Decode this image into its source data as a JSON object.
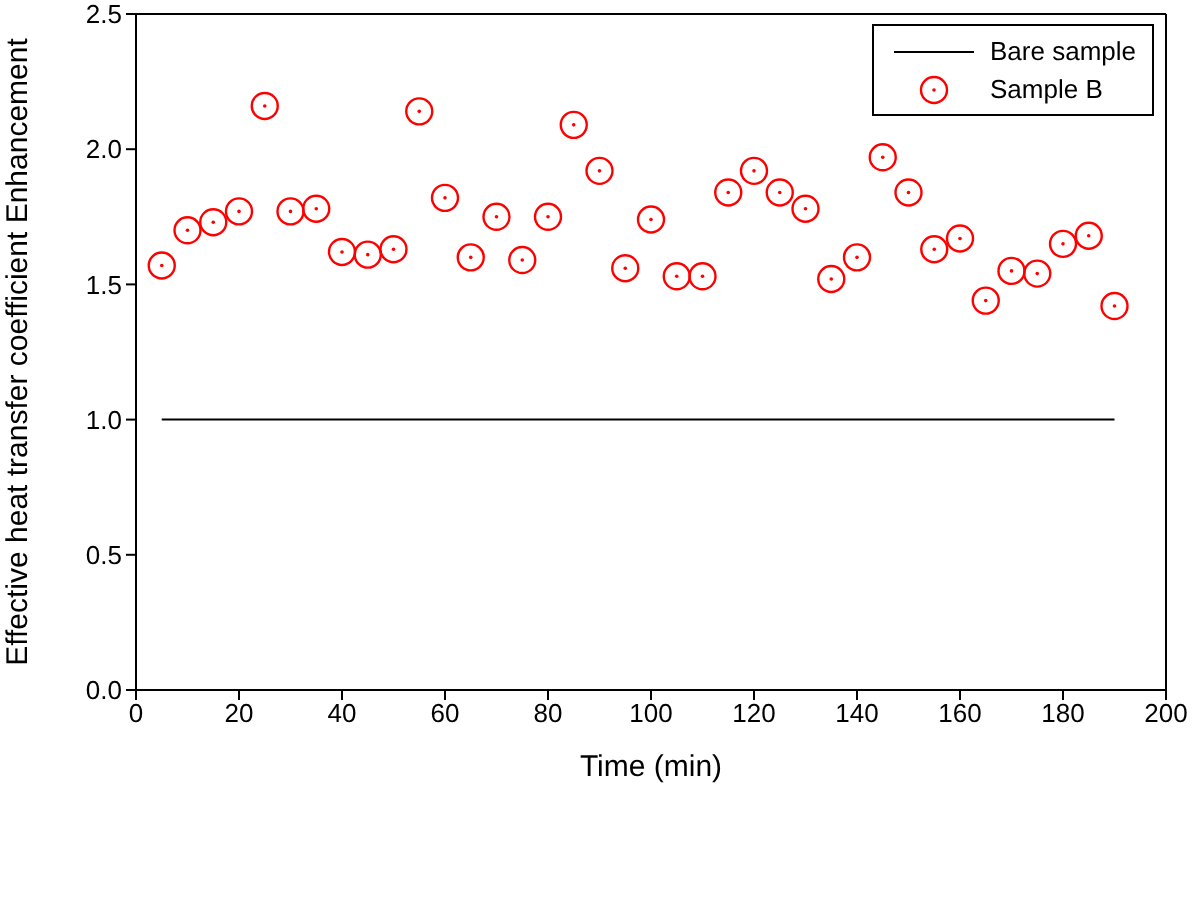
{
  "chart_data": {
    "type": "scatter",
    "xlabel": "Time (min)",
    "ylabel": "Effective heat transfer coefficient Enhancement",
    "xlim": [
      0,
      200
    ],
    "xticks": [
      0,
      20,
      40,
      60,
      80,
      100,
      120,
      140,
      160,
      180,
      200
    ],
    "ylim": [
      0,
      2.5
    ],
    "yticks": [
      {
        "value": 0,
        "label": "0.0"
      },
      {
        "value": 0.5,
        "label": "0.5"
      },
      {
        "value": 1,
        "label": "1.0"
      },
      {
        "value": 1.5,
        "label": "1.5"
      },
      {
        "value": 2,
        "label": "2.0"
      },
      {
        "value": 2.5,
        "label": "2.5"
      }
    ],
    "x": [
      5,
      10,
      15,
      20,
      25,
      30,
      35,
      40,
      45,
      50,
      55,
      60,
      65,
      70,
      75,
      80,
      85,
      90,
      95,
      100,
      105,
      110,
      115,
      120,
      125,
      130,
      135,
      140,
      145,
      150,
      155,
      160,
      165,
      170,
      175,
      180,
      185,
      190
    ],
    "legend": "top right",
    "grid": false,
    "series": [
      {
        "name": "Bare sample",
        "type": "line",
        "color": "#000000",
        "marker": "none",
        "x": [
          5,
          190
        ],
        "values": [
          1,
          1
        ]
      },
      {
        "name": "Sample B",
        "type": "scatter",
        "color": "#ff0000",
        "marker": "circle",
        "values": [
          1.57,
          1.7,
          1.73,
          1.77,
          2.16,
          1.77,
          1.78,
          1.62,
          1.61,
          1.63,
          2.14,
          1.82,
          1.6,
          1.75,
          1.59,
          1.75,
          2.09,
          1.92,
          1.56,
          1.74,
          1.53,
          1.53,
          1.84,
          1.92,
          1.84,
          1.78,
          1.52,
          1.6,
          1.97,
          1.84,
          1.63,
          1.67,
          1.44,
          1.55,
          1.54,
          1.65,
          1.68,
          1.42
        ]
      }
    ]
  }
}
